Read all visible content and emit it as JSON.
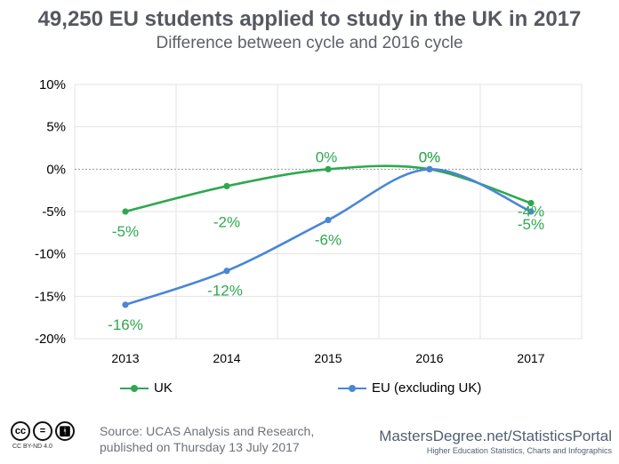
{
  "header": {
    "title": "49,250 EU students applied to study in the UK in 2017",
    "subtitle": "Difference between cycle and 2016 cycle"
  },
  "chart_data": {
    "type": "line",
    "categories": [
      "2013",
      "2014",
      "2015",
      "2016",
      "2017"
    ],
    "series": [
      {
        "name": "UK",
        "color": "#2ea84f",
        "values": [
          -5,
          -2,
          0,
          0,
          -4
        ],
        "labels": [
          "-5%",
          "-2%",
          "0%",
          "0%",
          "-4%"
        ]
      },
      {
        "name": "EU (excluding UK)",
        "color": "#4a86d6",
        "values": [
          -16,
          -12,
          -6,
          0,
          -5
        ],
        "labels": [
          "-16%",
          "-12%",
          "-6%",
          "0%",
          "-5%"
        ]
      }
    ],
    "yticks": [
      "10%",
      "5%",
      "0%",
      "-5%",
      "-10%",
      "-15%",
      "-20%"
    ],
    "ylim": [
      -20,
      10
    ],
    "xlabel": "",
    "ylabel": "",
    "grid": true,
    "legend_position": "bottom-left"
  },
  "footer": {
    "license_icons": [
      "cc-icon",
      "equals-icon",
      "person-icon"
    ],
    "license_text": "CC BY-ND 4.0",
    "source_line1": "Source: UCAS Analysis and Research,",
    "source_line2": "published on Thursday 13 July 2017",
    "brand_name": "MastersDegree.net/StatisticsPortal",
    "brand_tagline": "Higher Education Statistics, Charts and Infographics"
  }
}
